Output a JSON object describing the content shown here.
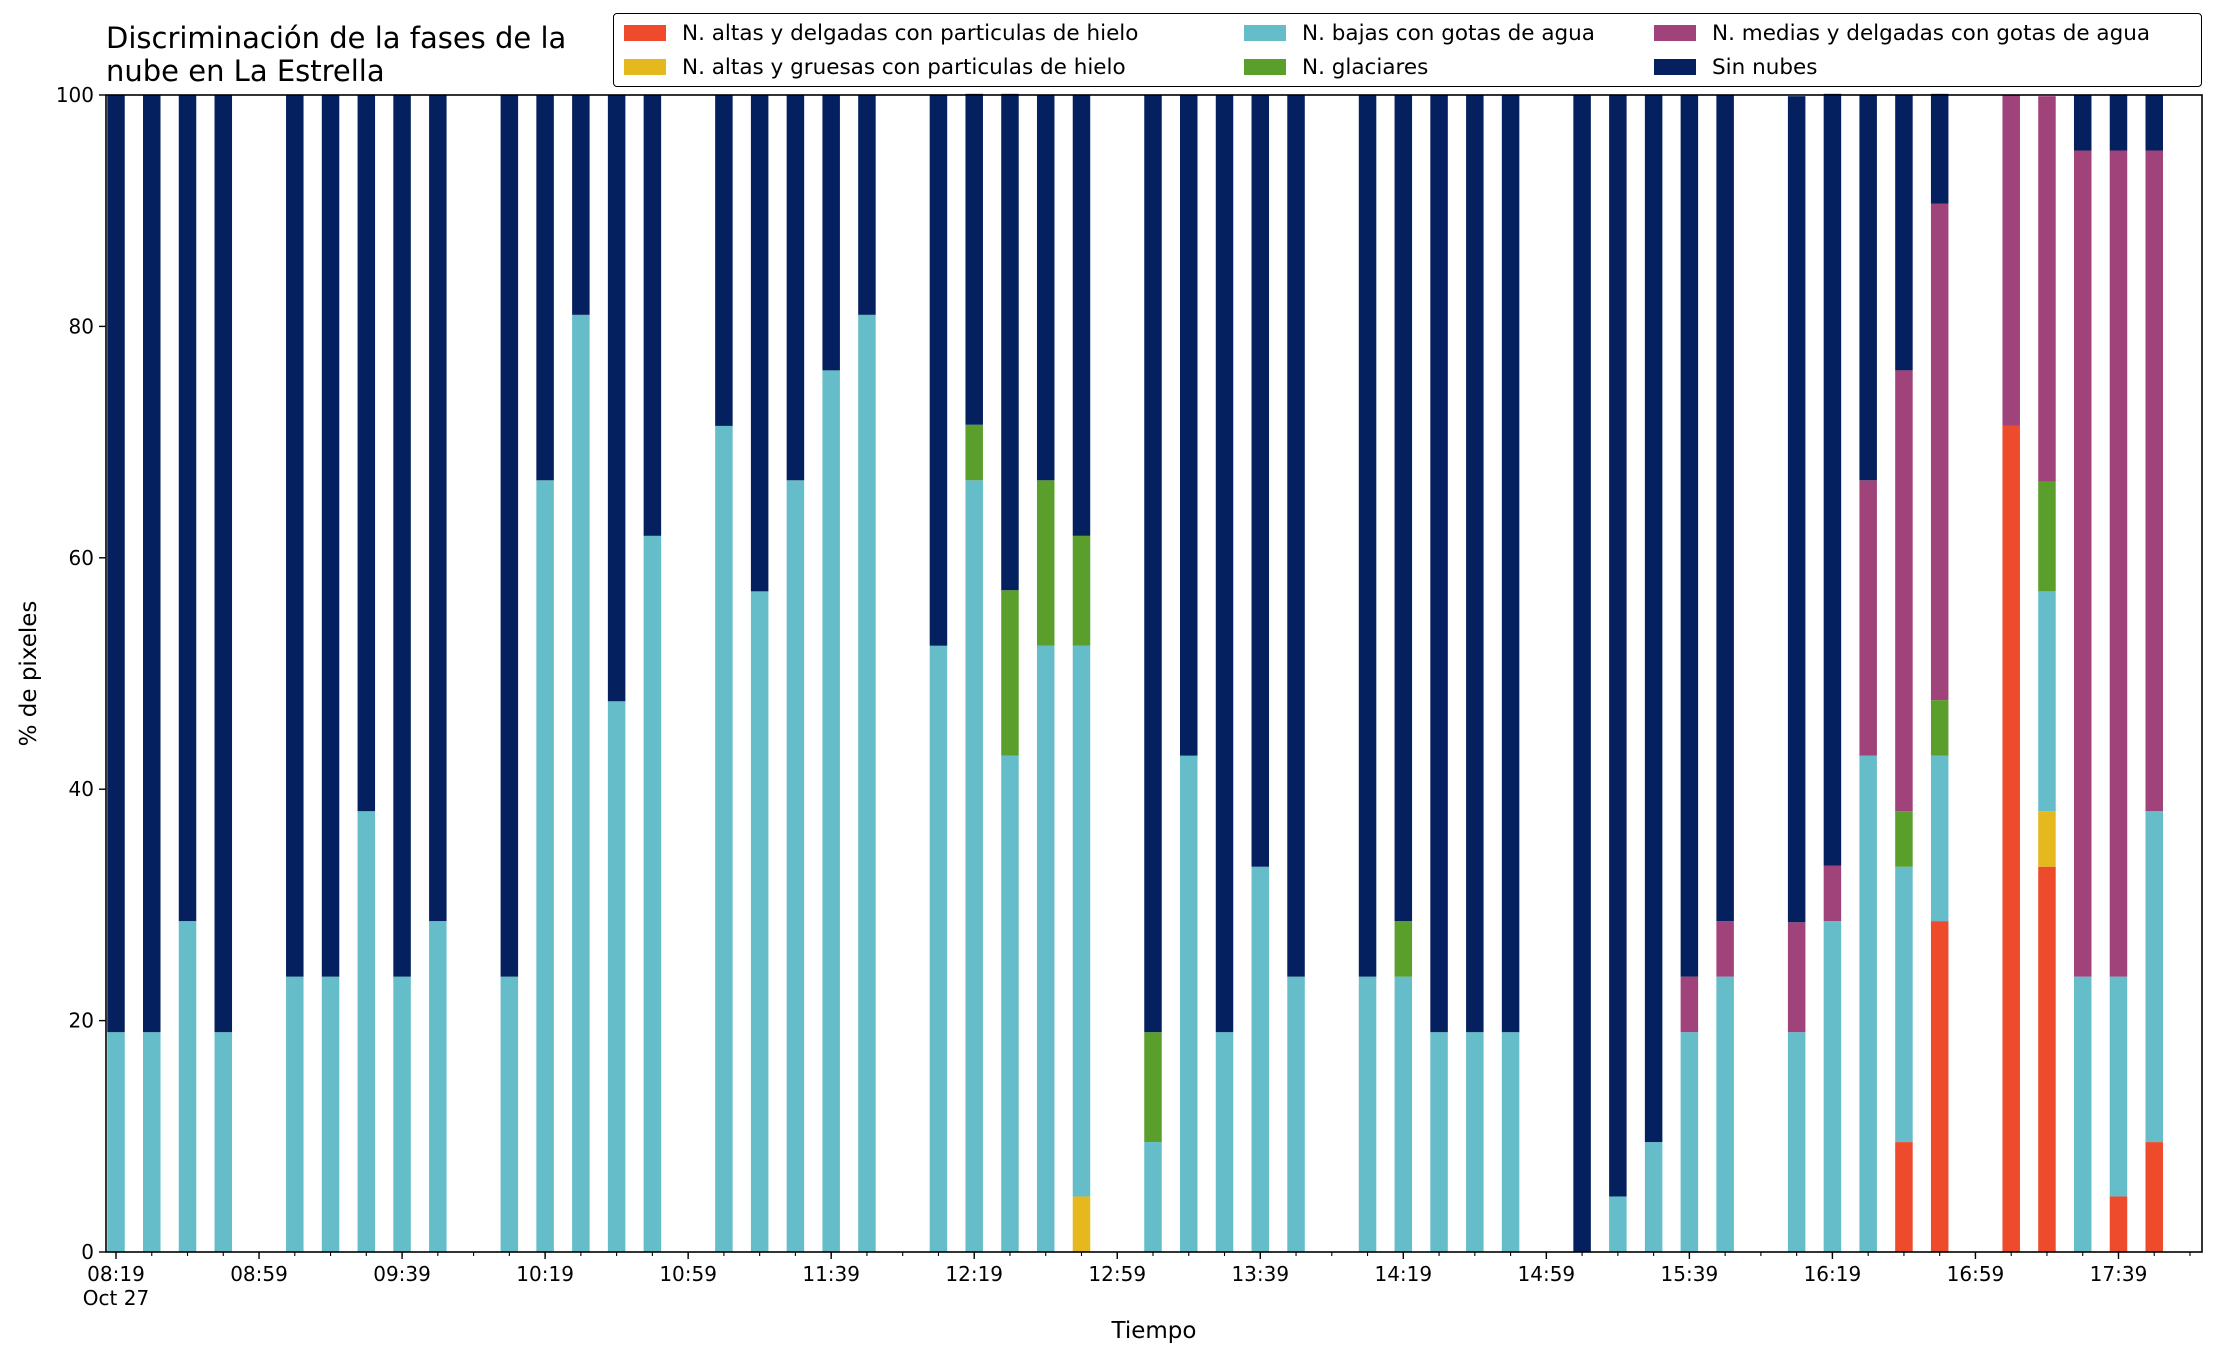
{
  "chart_data": {
    "type": "bar",
    "stacked": true,
    "title": "Discriminación de la fases de la\nnube en La Estrella",
    "xlabel": "Tiempo",
    "ylabel": "% de pixeles",
    "ylim": [
      0,
      100
    ],
    "yticks": [
      0,
      20,
      40,
      60,
      80,
      100
    ],
    "grid": false,
    "legend_position": "top",
    "x_start": "2023-10-27 08:19",
    "x_end": "2023-10-27 17:59",
    "xticks": [
      {
        "time": "08:19",
        "label": "08:19",
        "sublabel": "Oct 27"
      },
      {
        "time": "08:59",
        "label": "08:59"
      },
      {
        "time": "09:39",
        "label": "09:39"
      },
      {
        "time": "10:19",
        "label": "10:19"
      },
      {
        "time": "10:59",
        "label": "10:59"
      },
      {
        "time": "11:39",
        "label": "11:39"
      },
      {
        "time": "12:19",
        "label": "12:19"
      },
      {
        "time": "12:59",
        "label": "12:59"
      },
      {
        "time": "13:39",
        "label": "13:39"
      },
      {
        "time": "14:19",
        "label": "14:19"
      },
      {
        "time": "14:59",
        "label": "14:59"
      },
      {
        "time": "15:39",
        "label": "15:39"
      },
      {
        "time": "16:19",
        "label": "16:19"
      },
      {
        "time": "16:59",
        "label": "16:59"
      },
      {
        "time": "17:39",
        "label": "17:39"
      }
    ],
    "minor_tick_step_minutes": 10,
    "x": [
      "08:19",
      "08:29",
      "08:39",
      "08:49",
      "09:09",
      "09:19",
      "09:29",
      "09:39",
      "09:49",
      "10:09",
      "10:19",
      "10:29",
      "10:39",
      "10:49",
      "11:09",
      "11:19",
      "11:29",
      "11:39",
      "11:49",
      "12:09",
      "12:19",
      "12:29",
      "12:39",
      "12:49",
      "13:09",
      "13:19",
      "13:29",
      "13:39",
      "13:49",
      "14:09",
      "14:19",
      "14:29",
      "14:39",
      "14:49",
      "15:09",
      "15:19",
      "15:29",
      "15:39",
      "15:49",
      "16:09",
      "16:19",
      "16:29",
      "16:39",
      "16:49",
      "17:09",
      "17:19",
      "17:29",
      "17:39",
      "17:49"
    ],
    "series": [
      {
        "name": "N. altas y delgadas con particulas de hielo",
        "color": "#EE4A2C",
        "values": [
          0,
          0,
          0,
          0,
          0,
          0,
          0,
          0,
          0,
          0,
          0,
          0,
          0,
          0,
          0,
          0,
          0,
          0,
          0,
          0,
          0,
          0,
          0,
          0,
          0,
          0,
          0,
          0,
          0,
          0,
          0,
          0,
          0,
          0,
          0,
          0,
          0,
          0,
          0,
          0,
          0,
          0,
          9.5,
          28.6,
          71.4,
          33.3,
          0,
          4.8,
          9.5
        ]
      },
      {
        "name": "N. altas y gruesas con particulas de hielo",
        "color": "#E5B81E",
        "values": [
          0,
          0,
          0,
          0,
          0,
          0,
          0,
          0,
          0,
          0,
          0,
          0,
          0,
          0,
          0,
          0,
          0,
          0,
          0,
          0,
          0,
          0,
          0,
          4.8,
          0,
          0,
          0,
          0,
          0,
          0,
          0,
          0,
          0,
          0,
          0,
          0,
          0,
          0,
          0,
          0,
          0,
          0,
          0,
          0,
          0,
          4.8,
          0,
          0,
          0
        ]
      },
      {
        "name": "N. bajas con gotas de agua",
        "color": "#66BDCA",
        "values": [
          19.0,
          19.0,
          28.6,
          19.0,
          23.8,
          23.8,
          38.1,
          23.8,
          28.6,
          23.8,
          66.7,
          81.0,
          47.6,
          61.9,
          71.4,
          57.1,
          66.7,
          76.2,
          81.0,
          52.4,
          66.7,
          42.9,
          52.4,
          47.6,
          9.5,
          42.9,
          19.0,
          33.3,
          23.8,
          23.8,
          23.8,
          19.0,
          19.0,
          19.0,
          0,
          4.8,
          9.5,
          19.0,
          23.8,
          19.0,
          28.6,
          42.9,
          23.8,
          14.3,
          0,
          19.0,
          23.8,
          19.0,
          28.6
        ]
      },
      {
        "name": "N. glaciares",
        "color": "#5A9E2C",
        "values": [
          0,
          0,
          0,
          0,
          0,
          0,
          0,
          0,
          0,
          0,
          0,
          0,
          0,
          0,
          0,
          0,
          0,
          0,
          0,
          0,
          4.8,
          14.3,
          14.3,
          9.5,
          9.5,
          0,
          0,
          0,
          0,
          0,
          4.8,
          0,
          0,
          0,
          0,
          0,
          0,
          0,
          0,
          0,
          0,
          0,
          4.8,
          4.8,
          0,
          9.5,
          0,
          0,
          0
        ]
      },
      {
        "name": "N. medias y delgadas con gotas de agua",
        "color": "#A0437A",
        "values": [
          0,
          0,
          0,
          0,
          0,
          0,
          0,
          0,
          0,
          0,
          0,
          0,
          0,
          0,
          0,
          0,
          0,
          0,
          0,
          0,
          0,
          0,
          0,
          0,
          0,
          0,
          0,
          0,
          0,
          0,
          0,
          0,
          0,
          0,
          0,
          0,
          0,
          4.8,
          4.8,
          9.5,
          4.8,
          23.8,
          38.1,
          42.9,
          28.6,
          33.3,
          71.4,
          71.4,
          57.1
        ]
      },
      {
        "name": "Sin nubes",
        "color": "#04205E",
        "values": [
          81.0,
          81.0,
          71.4,
          81.0,
          76.2,
          76.2,
          61.9,
          76.2,
          71.4,
          76.2,
          33.3,
          19.0,
          52.4,
          38.1,
          28.6,
          42.9,
          33.3,
          23.8,
          19.0,
          47.6,
          28.6,
          42.9,
          33.3,
          38.1,
          81.0,
          57.1,
          81.0,
          66.7,
          76.2,
          76.2,
          71.4,
          81.0,
          81.0,
          81.0,
          100,
          95.2,
          90.5,
          76.2,
          71.4,
          71.4,
          66.7,
          33.3,
          23.8,
          9.5,
          0,
          0,
          4.8,
          4.8,
          4.8
        ]
      }
    ]
  }
}
